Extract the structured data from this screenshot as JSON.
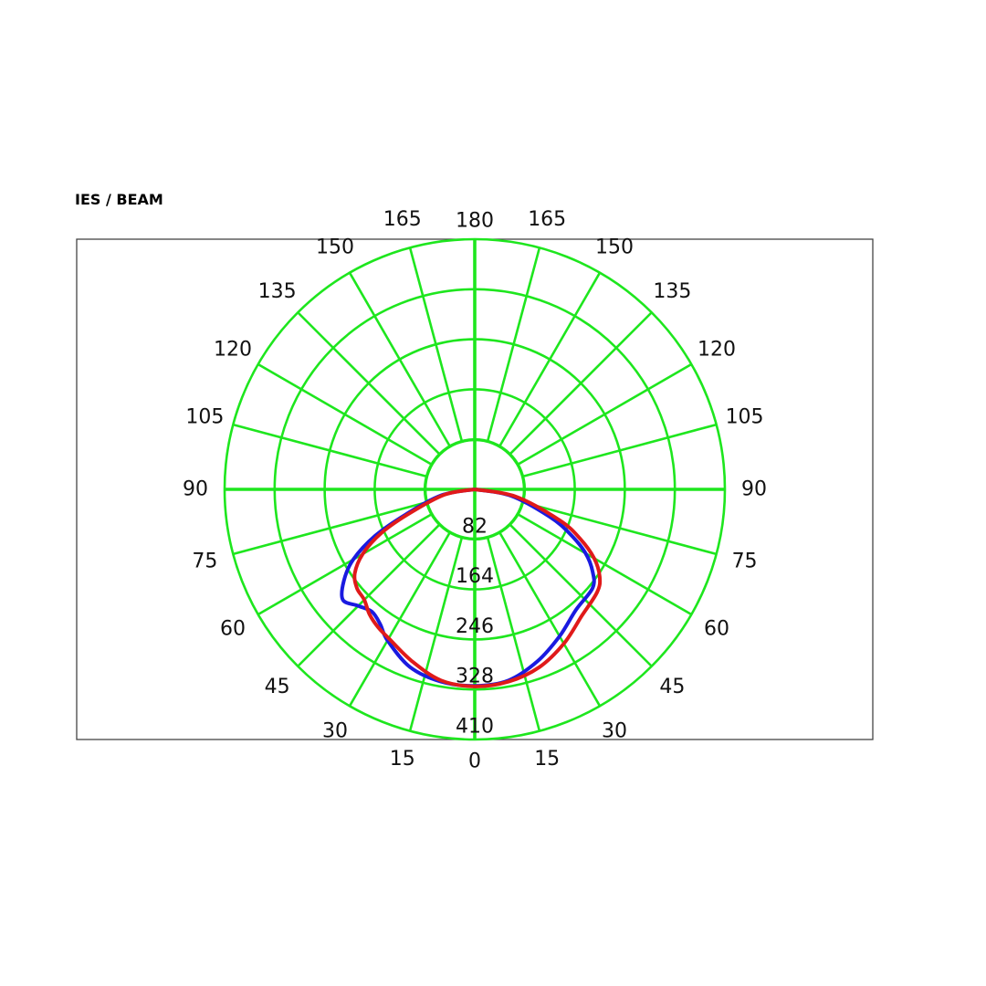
{
  "page": {
    "title": "IES / BEAM"
  },
  "chart_data": {
    "type": "polar",
    "title": "IES / BEAM",
    "angle_ticks": {
      "left": [
        "180",
        "165",
        "150",
        "135",
        "120",
        "105",
        "90",
        "75",
        "60",
        "45",
        "30",
        "15",
        "0"
      ],
      "right": [
        "165",
        "150",
        "135",
        "120",
        "105",
        "90",
        "75",
        "60",
        "45",
        "30",
        "15"
      ],
      "values": [
        180,
        165,
        150,
        135,
        120,
        105,
        90,
        75,
        60,
        45,
        30,
        15,
        0
      ]
    },
    "radial_ticks": [
      "82",
      "164",
      "246",
      "328",
      "410"
    ],
    "radial_values": [
      82,
      164,
      246,
      328,
      410
    ],
    "rmax": 410,
    "grid": true,
    "grid_color": "#1ee61e",
    "series": [
      {
        "color": "#1a1ae0",
        "points": [
          {
            "angle": -90,
            "value": 0
          },
          {
            "angle": -80,
            "value": 55
          },
          {
            "angle": -70,
            "value": 120
          },
          {
            "angle": -65,
            "value": 180
          },
          {
            "angle": -60,
            "value": 230
          },
          {
            "angle": -55,
            "value": 262
          },
          {
            "angle": -50,
            "value": 282
          },
          {
            "angle": -45,
            "value": 270
          },
          {
            "angle": -40,
            "value": 262
          },
          {
            "angle": -35,
            "value": 270
          },
          {
            "angle": -30,
            "value": 286
          },
          {
            "angle": -20,
            "value": 310
          },
          {
            "angle": -10,
            "value": 320
          },
          {
            "angle": 0,
            "value": 322
          },
          {
            "angle": 10,
            "value": 318
          },
          {
            "angle": 20,
            "value": 300
          },
          {
            "angle": 30,
            "value": 278
          },
          {
            "angle": 40,
            "value": 258
          },
          {
            "angle": 50,
            "value": 252
          },
          {
            "angle": 55,
            "value": 236
          },
          {
            "angle": 60,
            "value": 210
          },
          {
            "angle": 65,
            "value": 172
          },
          {
            "angle": 70,
            "value": 130
          },
          {
            "angle": 80,
            "value": 60
          },
          {
            "angle": 90,
            "value": 0
          }
        ]
      },
      {
        "color": "#e01a1a",
        "points": [
          {
            "angle": -90,
            "value": 0
          },
          {
            "angle": -80,
            "value": 50
          },
          {
            "angle": -70,
            "value": 112
          },
          {
            "angle": -65,
            "value": 168
          },
          {
            "angle": -60,
            "value": 212
          },
          {
            "angle": -55,
            "value": 240
          },
          {
            "angle": -50,
            "value": 252
          },
          {
            "angle": -45,
            "value": 256
          },
          {
            "angle": -40,
            "value": 268
          },
          {
            "angle": -35,
            "value": 276
          },
          {
            "angle": -30,
            "value": 282
          },
          {
            "angle": -20,
            "value": 300
          },
          {
            "angle": -10,
            "value": 318
          },
          {
            "angle": 0,
            "value": 323
          },
          {
            "angle": 10,
            "value": 320
          },
          {
            "angle": 20,
            "value": 310
          },
          {
            "angle": 30,
            "value": 292
          },
          {
            "angle": 40,
            "value": 272
          },
          {
            "angle": 50,
            "value": 262
          },
          {
            "angle": 55,
            "value": 250
          },
          {
            "angle": 60,
            "value": 226
          },
          {
            "angle": 65,
            "value": 190
          },
          {
            "angle": 70,
            "value": 148
          },
          {
            "angle": 80,
            "value": 68
          },
          {
            "angle": 90,
            "value": 0
          }
        ]
      }
    ]
  }
}
